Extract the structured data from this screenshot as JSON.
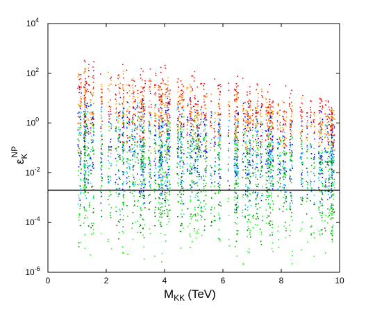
{
  "chart_data": {
    "type": "scatter",
    "title": "",
    "xlabel": "M",
    "xlabel_sub": "KK",
    "xlabel_unit": "(TeV)",
    "ylabel": "ε",
    "ylabel_sub": "K",
    "ylabel_sup": "NP",
    "xlim": [
      0,
      10
    ],
    "ylim_log10": [
      -6,
      4
    ],
    "yscale": "log",
    "grid": false,
    "legend": "none",
    "x_ticks": [
      "0",
      "2",
      "4",
      "6",
      "8",
      "10"
    ],
    "y_ticks": [
      {
        "base": "10",
        "exp": "-6"
      },
      {
        "base": "10",
        "exp": "-4"
      },
      {
        "base": "10",
        "exp": "-2"
      },
      {
        "base": "10",
        "exp": "0"
      },
      {
        "base": "10",
        "exp": "2"
      },
      {
        "base": "10",
        "exp": "4"
      }
    ],
    "reference_line": {
      "y": 0.002,
      "color": "#000000"
    },
    "series": [
      {
        "color": "#ff0000",
        "ymax_log10_at_xmin": 2.9,
        "ymax_log10_at_xmax": 1.3,
        "ymin_log10": -1.5
      },
      {
        "color": "#ff9900",
        "ymax_log10_at_xmin": 2.5,
        "ymax_log10_at_xmax": 1.0,
        "ymin_log10": -1.6
      },
      {
        "color": "#0000ff",
        "ymax_log10_at_xmin": 1.7,
        "ymax_log10_at_xmax": 0.7,
        "ymin_log10": -3.6
      },
      {
        "color": "#00ccff",
        "ymax_log10_at_xmin": 1.2,
        "ymax_log10_at_xmax": 0.3,
        "ymin_log10": -4.0
      },
      {
        "color": "#00ff00",
        "ymax_log10_at_xmin": 0.8,
        "ymax_log10_at_xmax": 0.0,
        "ymin_log10": -5.9
      },
      {
        "color": "#008000",
        "ymax_log10_at_xmin": 0.6,
        "ymax_log10_at_xmax": -0.4,
        "ymin_log10": -5.2
      }
    ]
  }
}
